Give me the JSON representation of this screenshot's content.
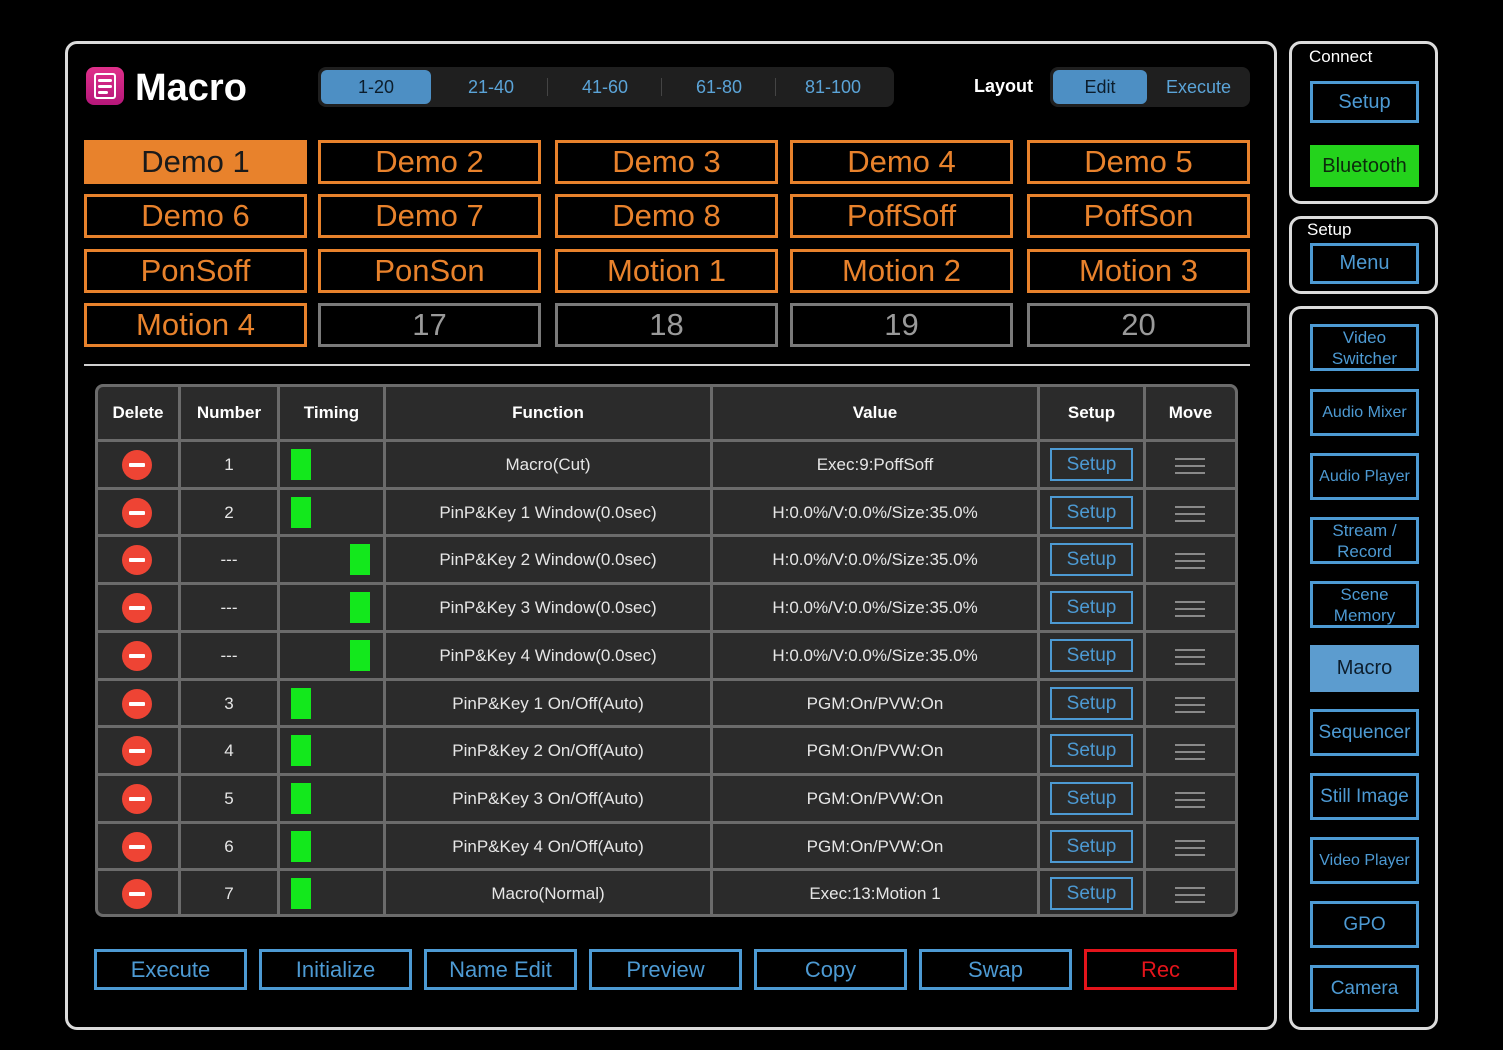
{
  "header": {
    "title": "Macro",
    "page_tabs": [
      "1-20",
      "21-40",
      "41-60",
      "61-80",
      "81-100"
    ],
    "active_page_tab": "1-20",
    "layout_label": "Layout",
    "layout_options": [
      "Edit",
      "Execute"
    ],
    "active_layout": "Edit"
  },
  "macros": [
    {
      "label": "Demo 1",
      "state": "active"
    },
    {
      "label": "Demo 2",
      "state": "assigned"
    },
    {
      "label": "Demo 3",
      "state": "assigned"
    },
    {
      "label": "Demo 4",
      "state": "assigned"
    },
    {
      "label": "Demo 5",
      "state": "assigned"
    },
    {
      "label": "Demo 6",
      "state": "assigned"
    },
    {
      "label": "Demo 7",
      "state": "assigned"
    },
    {
      "label": "Demo 8",
      "state": "assigned"
    },
    {
      "label": "PoffSoff",
      "state": "assigned"
    },
    {
      "label": "PoffSon",
      "state": "assigned"
    },
    {
      "label": "PonSoff",
      "state": "assigned"
    },
    {
      "label": "PonSon",
      "state": "assigned"
    },
    {
      "label": "Motion 1",
      "state": "assigned"
    },
    {
      "label": "Motion 2",
      "state": "assigned"
    },
    {
      "label": "Motion 3",
      "state": "assigned"
    },
    {
      "label": "Motion 4",
      "state": "assigned"
    },
    {
      "label": "17",
      "state": "empty"
    },
    {
      "label": "18",
      "state": "empty"
    },
    {
      "label": "19",
      "state": "empty"
    },
    {
      "label": "20",
      "state": "empty"
    }
  ],
  "table": {
    "columns": [
      "Delete",
      "Number",
      "Timing",
      "Function",
      "Value",
      "Setup",
      "Move"
    ],
    "setup_label": "Setup",
    "rows": [
      {
        "number": "1",
        "timing": "left",
        "function": "Macro(Cut)",
        "value": "Exec:9:PoffSoff"
      },
      {
        "number": "2",
        "timing": "left",
        "function": "PinP&Key 1 Window(0.0sec)",
        "value": "H:0.0%/V:0.0%/Size:35.0%"
      },
      {
        "number": "---",
        "timing": "right",
        "function": "PinP&Key 2 Window(0.0sec)",
        "value": "H:0.0%/V:0.0%/Size:35.0%"
      },
      {
        "number": "---",
        "timing": "right",
        "function": "PinP&Key 3 Window(0.0sec)",
        "value": "H:0.0%/V:0.0%/Size:35.0%"
      },
      {
        "number": "---",
        "timing": "right",
        "function": "PinP&Key 4 Window(0.0sec)",
        "value": "H:0.0%/V:0.0%/Size:35.0%"
      },
      {
        "number": "3",
        "timing": "left",
        "function": "PinP&Key 1 On/Off(Auto)",
        "value": "PGM:On/PVW:On"
      },
      {
        "number": "4",
        "timing": "left",
        "function": "PinP&Key 2 On/Off(Auto)",
        "value": "PGM:On/PVW:On"
      },
      {
        "number": "5",
        "timing": "left",
        "function": "PinP&Key 3 On/Off(Auto)",
        "value": "PGM:On/PVW:On"
      },
      {
        "number": "6",
        "timing": "left",
        "function": "PinP&Key 4 On/Off(Auto)",
        "value": "PGM:On/PVW:On"
      },
      {
        "number": "7",
        "timing": "left",
        "function": "Macro(Normal)",
        "value": "Exec:13:Motion 1"
      }
    ]
  },
  "actions": [
    "Execute",
    "Initialize",
    "Name Edit",
    "Preview",
    "Copy",
    "Swap",
    "Rec"
  ],
  "sidebar": {
    "connect_label": "Connect",
    "connect_setup": "Setup",
    "bluetooth": "Bluetooth",
    "setup_label": "Setup",
    "menu": "Menu",
    "nav": [
      "Video Switcher",
      "Audio Mixer",
      "Audio Player",
      "Stream / Record",
      "Scene Memory",
      "Macro",
      "Sequencer",
      "Still Image",
      "Video Player",
      "GPO",
      "Camera"
    ],
    "active_nav": "Macro"
  },
  "colors": {
    "macro_orange": "#e8822c",
    "accent_blue": "#4d9ad3",
    "timing_green": "#13e81c",
    "delete_red": "#ee4434",
    "rec_red": "#e4141b",
    "bluetooth_green": "#24d31c"
  }
}
